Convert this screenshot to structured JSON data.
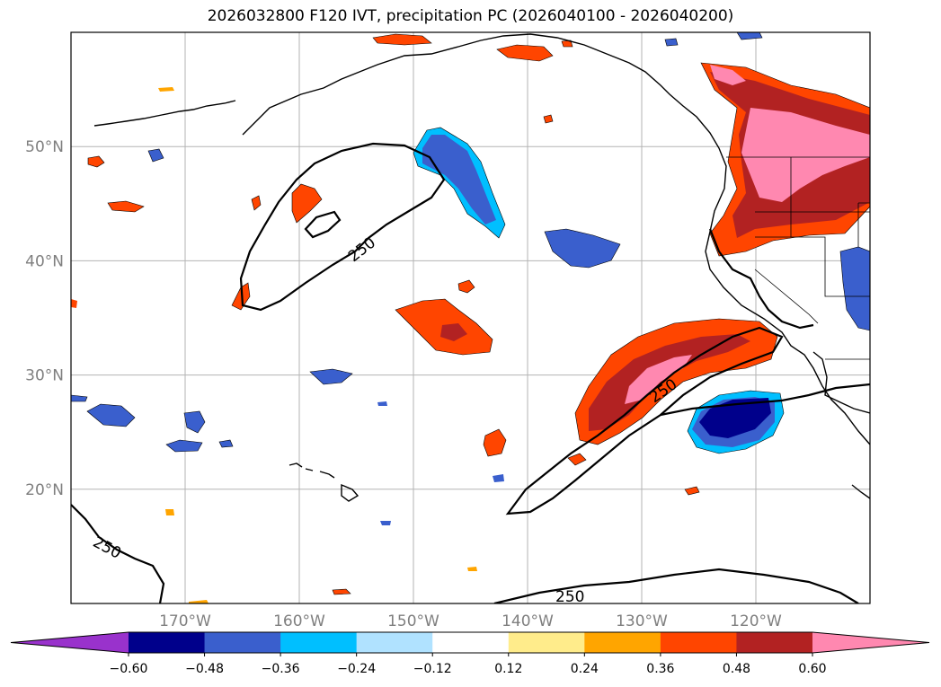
{
  "title": "2026032800 F120 IVT, precipitation PC (2026040100 - 2026040200)",
  "map": {
    "lat_ticks": [
      {
        "value": 50,
        "label": "50°N"
      },
      {
        "value": 40,
        "label": "40°N"
      },
      {
        "value": 30,
        "label": "30°N"
      },
      {
        "value": 20,
        "label": "20°N"
      }
    ],
    "lon_ticks": [
      {
        "value": -170,
        "label": "170°W"
      },
      {
        "value": -160,
        "label": "160°W"
      },
      {
        "value": -150,
        "label": "150°W"
      },
      {
        "value": -140,
        "label": "140°W"
      },
      {
        "value": -130,
        "label": "130°W"
      },
      {
        "value": -120,
        "label": "120°W"
      }
    ],
    "lon_range": [
      -180,
      -110
    ],
    "lat_range": [
      10,
      60
    ],
    "gridlines": true,
    "contour_labels": [
      "250",
      "250",
      "250",
      "250"
    ]
  },
  "colorbar": {
    "ticks": [
      "−0.60",
      "−0.48",
      "−0.36",
      "−0.24",
      "−0.12",
      "0.12",
      "0.24",
      "0.36",
      "0.48",
      "0.60"
    ],
    "colors": [
      "#9932cc",
      "#00008b",
      "#3a5fcd",
      "#00bfff",
      "#b0e2ff",
      "#ffffff",
      "#ffec8b",
      "#ffa500",
      "#ff4500",
      "#b22222",
      "#ff88b0"
    ]
  }
}
